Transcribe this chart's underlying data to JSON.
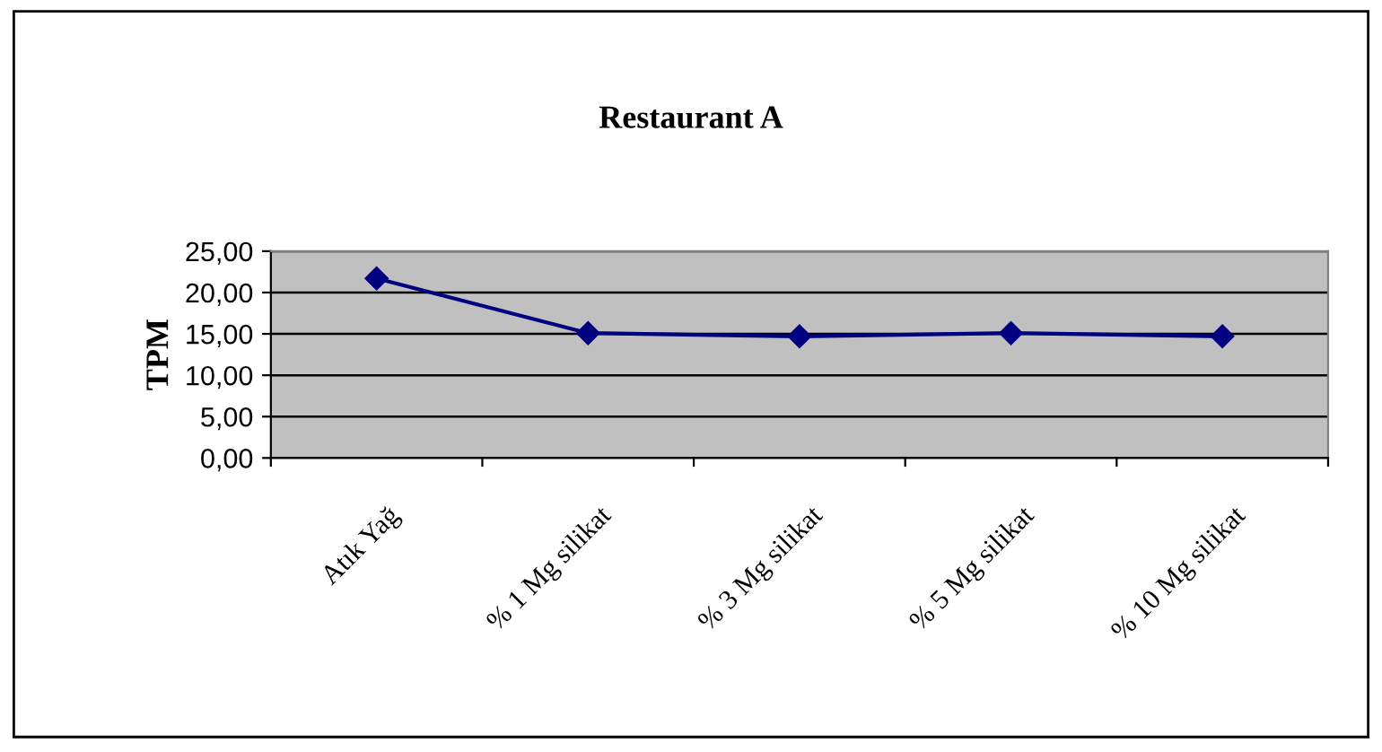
{
  "chart_data": {
    "type": "line",
    "title": "Restaurant A",
    "ylabel": "TPM",
    "categories": [
      "Atık Yağ",
      "% 1 Mg silikat",
      "% 3 Mg silikat",
      "% 5 Mg silikat",
      "% 10 Mg silikat"
    ],
    "series": [
      {
        "color": "#000080",
        "values": [
          21.7,
          15.1,
          14.7,
          15.1,
          14.7
        ]
      }
    ],
    "ylim": [
      0,
      25
    ],
    "yticks": [
      {
        "value": 0,
        "label": "0,00"
      },
      {
        "value": 5,
        "label": "5,00"
      },
      {
        "value": 10,
        "label": "10,00"
      },
      {
        "value": 15,
        "label": "15,00"
      },
      {
        "value": 20,
        "label": "20,00"
      },
      {
        "value": 25,
        "label": "25,00"
      }
    ],
    "grid": "y",
    "marker": "diamond",
    "line_style": "solid",
    "legend": false
  }
}
